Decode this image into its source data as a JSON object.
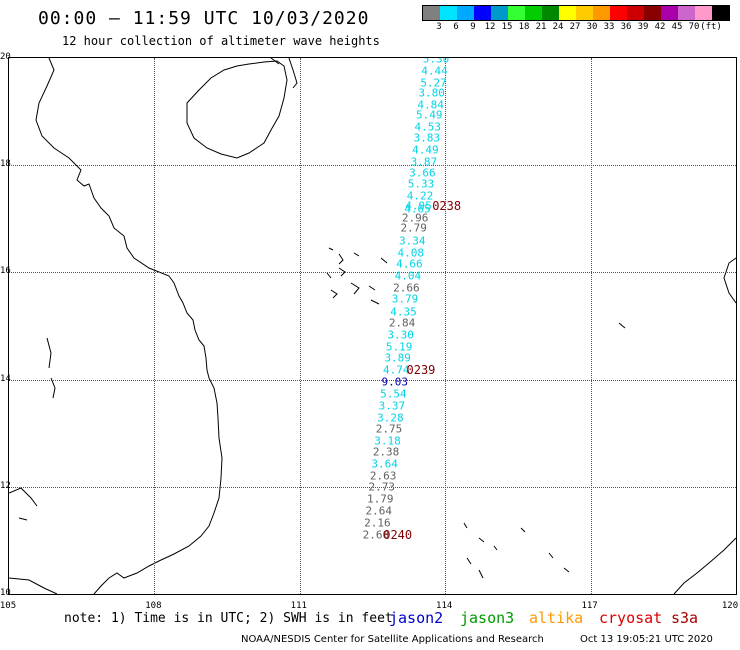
{
  "header": {
    "title": "00:00 – 11:59 UTC 10/03/2020",
    "subtitle": "12 hour collection of altimeter wave heights"
  },
  "legend": {
    "unit": "(ft)",
    "colors": [
      "#808080",
      "#00e5ff",
      "#00a8ff",
      "#0000ff",
      "#0099cc",
      "#33ff33",
      "#00cc00",
      "#008800",
      "#ffff00",
      "#ffcc00",
      "#ff9900",
      "#ff0000",
      "#cc0000",
      "#880000",
      "#aa00aa",
      "#cc66cc",
      "#ff99cc",
      "#000000"
    ],
    "labels": [
      "3",
      "6",
      "9",
      "12",
      "15",
      "18",
      "21",
      "24",
      "27",
      "30",
      "33",
      "36",
      "39",
      "42",
      "45",
      "70"
    ]
  },
  "map": {
    "lat_ticks": [
      "20",
      "18",
      "16",
      "14",
      "12",
      "10"
    ],
    "lon_ticks": [
      "105",
      "108",
      "111",
      "114",
      "117",
      "120"
    ],
    "wave_colors": {
      "cyan": "#00d4e8",
      "gray": "#606060",
      "navy": "#0000aa"
    },
    "wave_points": [
      {
        "v": "5.30",
        "c": "cyan",
        "lon": 113.81,
        "lat": 19.98
      },
      {
        "v": "4.44",
        "c": "cyan",
        "lon": 113.78,
        "lat": 19.75
      },
      {
        "v": "5.27",
        "c": "cyan",
        "lon": 113.76,
        "lat": 19.54
      },
      {
        "v": "3.80",
        "c": "cyan",
        "lon": 113.72,
        "lat": 19.34
      },
      {
        "v": "4.84",
        "c": "cyan",
        "lon": 113.7,
        "lat": 19.13
      },
      {
        "v": "5.49",
        "c": "cyan",
        "lon": 113.67,
        "lat": 18.93
      },
      {
        "v": "4.53",
        "c": "cyan",
        "lon": 113.64,
        "lat": 18.72
      },
      {
        "v": "3.83",
        "c": "cyan",
        "lon": 113.62,
        "lat": 18.5
      },
      {
        "v": "4.49",
        "c": "cyan",
        "lon": 113.59,
        "lat": 18.28
      },
      {
        "v": "3.87",
        "c": "cyan",
        "lon": 113.56,
        "lat": 18.06
      },
      {
        "v": "3.66",
        "c": "cyan",
        "lon": 113.53,
        "lat": 17.85
      },
      {
        "v": "5.33",
        "c": "cyan",
        "lon": 113.5,
        "lat": 17.64
      },
      {
        "v": "4.22",
        "c": "cyan",
        "lon": 113.48,
        "lat": 17.43
      },
      {
        "v": "4.95",
        "c": "cyan",
        "lon": 113.45,
        "lat": 17.24
      },
      {
        "v": "4.65",
        "c": "cyan",
        "lon": 113.43,
        "lat": 17.19
      },
      {
        "v": "2.96",
        "c": "gray",
        "lon": 113.38,
        "lat": 17.02
      },
      {
        "v": "2.79",
        "c": "gray",
        "lon": 113.35,
        "lat": 16.82
      },
      {
        "v": "3.34",
        "c": "cyan",
        "lon": 113.32,
        "lat": 16.58
      },
      {
        "v": "4.08",
        "c": "cyan",
        "lon": 113.29,
        "lat": 16.37
      },
      {
        "v": "4.66",
        "c": "cyan",
        "lon": 113.26,
        "lat": 16.15
      },
      {
        "v": "4.04",
        "c": "cyan",
        "lon": 113.23,
        "lat": 15.93
      },
      {
        "v": "2.66",
        "c": "gray",
        "lon": 113.2,
        "lat": 15.71
      },
      {
        "v": "3.79",
        "c": "cyan",
        "lon": 113.17,
        "lat": 15.5
      },
      {
        "v": "4.35",
        "c": "cyan",
        "lon": 113.14,
        "lat": 15.27
      },
      {
        "v": "2.84",
        "c": "gray",
        "lon": 113.11,
        "lat": 15.06
      },
      {
        "v": "3.30",
        "c": "cyan",
        "lon": 113.08,
        "lat": 14.83
      },
      {
        "v": "5.19",
        "c": "cyan",
        "lon": 113.05,
        "lat": 14.61
      },
      {
        "v": "3.89",
        "c": "cyan",
        "lon": 113.02,
        "lat": 14.4
      },
      {
        "v": "4.74",
        "c": "cyan",
        "lon": 112.99,
        "lat": 14.18
      },
      {
        "v": "9.03",
        "c": "navy",
        "lon": 112.96,
        "lat": 13.95
      },
      {
        "v": "5.54",
        "c": "cyan",
        "lon": 112.93,
        "lat": 13.73
      },
      {
        "v": "3.37",
        "c": "cyan",
        "lon": 112.9,
        "lat": 13.51
      },
      {
        "v": "3.28",
        "c": "cyan",
        "lon": 112.87,
        "lat": 13.29
      },
      {
        "v": "2.75",
        "c": "gray",
        "lon": 112.84,
        "lat": 13.08
      },
      {
        "v": "3.18",
        "c": "cyan",
        "lon": 112.81,
        "lat": 12.85
      },
      {
        "v": "2.38",
        "c": "gray",
        "lon": 112.78,
        "lat": 12.64
      },
      {
        "v": "3.64",
        "c": "cyan",
        "lon": 112.75,
        "lat": 12.43
      },
      {
        "v": "2.63",
        "c": "gray",
        "lon": 112.72,
        "lat": 12.21
      },
      {
        "v": "2.73",
        "c": "gray",
        "lon": 112.69,
        "lat": 11.99
      },
      {
        "v": "1.79",
        "c": "gray",
        "lon": 112.66,
        "lat": 11.77
      },
      {
        "v": "2.64",
        "c": "gray",
        "lon": 112.63,
        "lat": 11.55
      },
      {
        "v": "2.16",
        "c": "gray",
        "lon": 112.6,
        "lat": 11.33
      },
      {
        "v": "2.60",
        "c": "gray",
        "lon": 112.57,
        "lat": 11.11
      }
    ],
    "pass_labels": [
      {
        "v": "0238",
        "lon": 114.03,
        "lat": 17.24
      },
      {
        "v": "0239",
        "lon": 113.5,
        "lat": 14.18
      },
      {
        "v": "0240",
        "lon": 113.02,
        "lat": 11.11
      }
    ]
  },
  "footer": {
    "note": "note: 1) Time is in UTC; 2) SWH is in feet",
    "missions": [
      {
        "name": "jason2",
        "color": "#0000cc"
      },
      {
        "name": "jason3",
        "color": "#009900"
      },
      {
        "name": "altika",
        "color": "#ff9900"
      },
      {
        "name": "cryosat",
        "color": "#dd0000"
      },
      {
        "name": "s3a",
        "color": "#aa0000"
      }
    ],
    "credit": "NOAA/NESDIS Center for Satellite Applications and Research",
    "timestamp": "Oct 13 19:05:21 UTC 2020"
  }
}
